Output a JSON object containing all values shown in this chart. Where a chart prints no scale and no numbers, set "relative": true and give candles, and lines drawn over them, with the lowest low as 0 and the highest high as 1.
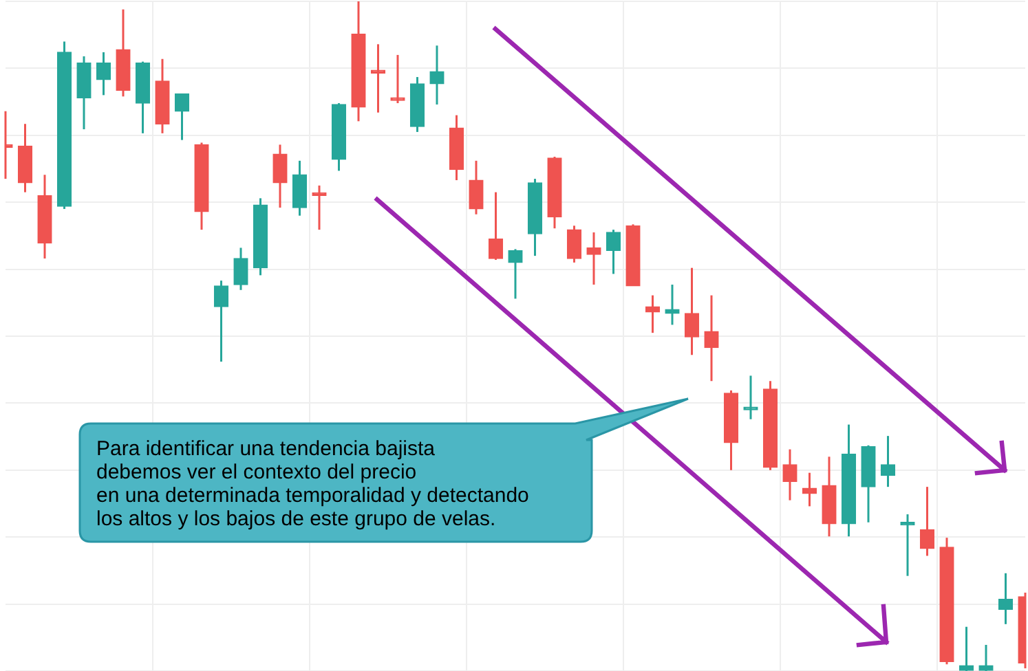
{
  "chart_data": {
    "type": "candlestick",
    "relative": true,
    "grid": true,
    "categories": [
      null,
      null,
      null,
      null,
      null,
      null,
      null,
      null,
      null,
      null,
      null,
      null,
      null,
      null,
      null,
      null,
      null,
      null,
      null,
      null,
      null,
      null,
      null,
      null,
      null,
      null,
      null,
      null,
      null,
      null,
      null,
      null,
      null,
      null,
      null,
      null,
      null,
      null,
      null,
      null,
      null,
      null,
      null,
      null,
      null,
      null,
      null,
      null,
      null,
      null,
      null,
      null,
      null
    ],
    "ohlc": [
      [
        0.786,
        0.836,
        0.735,
        0.782
      ],
      [
        0.784,
        0.817,
        0.715,
        0.729
      ],
      [
        0.71,
        0.741,
        0.616,
        0.639
      ],
      [
        0.694,
        0.94,
        0.69,
        0.924
      ],
      [
        0.856,
        0.918,
        0.809,
        0.908
      ],
      [
        0.883,
        0.924,
        0.86,
        0.908
      ],
      [
        0.928,
        0.988,
        0.858,
        0.867
      ],
      [
        0.848,
        0.91,
        0.803,
        0.908
      ],
      [
        0.881,
        0.914,
        0.803,
        0.817
      ],
      [
        0.836,
        0.862,
        0.793,
        0.862
      ],
      [
        0.786,
        0.789,
        0.659,
        0.686
      ],
      [
        0.544,
        0.583,
        0.462,
        0.575
      ],
      [
        0.577,
        0.632,
        0.569,
        0.616
      ],
      [
        0.602,
        0.706,
        0.591,
        0.696
      ],
      [
        0.772,
        0.786,
        0.692,
        0.729
      ],
      [
        0.692,
        0.762,
        0.68,
        0.741
      ],
      [
        0.71,
        0.725,
        0.659,
        0.71
      ],
      [
        0.764,
        0.848,
        0.747,
        0.846
      ],
      [
        0.951,
        1.0,
        0.821,
        0.842
      ],
      [
        0.897,
        0.936,
        0.834,
        0.893
      ],
      [
        0.852,
        0.92,
        0.848,
        0.852
      ],
      [
        0.813,
        0.887,
        0.805,
        0.877
      ],
      [
        0.877,
        0.934,
        0.846,
        0.895
      ],
      [
        0.811,
        0.83,
        0.733,
        0.749
      ],
      [
        0.733,
        0.762,
        0.682,
        0.69
      ],
      [
        0.645,
        0.715,
        0.614,
        0.616
      ],
      [
        0.61,
        0.63,
        0.556,
        0.628
      ],
      [
        0.653,
        0.735,
        0.62,
        0.729
      ],
      [
        0.766,
        0.768,
        0.661,
        0.678
      ],
      [
        0.659,
        0.665,
        0.61,
        0.616
      ],
      [
        0.632,
        0.655,
        0.577,
        0.622
      ],
      [
        0.628,
        0.659,
        0.593,
        0.655
      ],
      [
        0.665,
        0.667,
        0.575,
        0.575
      ],
      [
        0.544,
        0.561,
        0.505,
        0.536
      ],
      [
        0.534,
        0.577,
        0.517,
        0.54
      ],
      [
        0.534,
        0.602,
        0.472,
        0.499
      ],
      [
        0.507,
        0.561,
        0.433,
        0.483
      ],
      [
        0.415,
        0.419,
        0.3,
        0.341
      ],
      [
        0.39,
        0.441,
        0.376,
        0.39
      ],
      [
        0.421,
        0.433,
        0.3,
        0.304
      ],
      [
        0.308,
        0.331,
        0.255,
        0.283
      ],
      [
        0.273,
        0.296,
        0.246,
        0.265
      ],
      [
        0.277,
        0.32,
        0.201,
        0.22
      ],
      [
        0.22,
        0.368,
        0.201,
        0.324
      ],
      [
        0.275,
        0.337,
        0.222,
        0.335
      ],
      [
        0.292,
        0.351,
        0.275,
        0.308
      ],
      [
        0.218,
        0.234,
        0.142,
        0.218
      ],
      [
        0.211,
        0.275,
        0.172,
        0.183
      ],
      [
        0.185,
        0.199,
        0.01,
        0.014
      ],
      [
        0,
        0.066,
        0,
        0.008
      ],
      [
        0,
        0.039,
        0,
        0.008
      ],
      [
        0.092,
        0.146,
        0.07,
        0.107
      ],
      [
        0.111,
        0.117,
        0.004,
        0.012
      ]
    ],
    "colors": [
      "#ef5350",
      "#ef5350",
      "#ef5350",
      "#26a69a",
      "#26a69a",
      "#26a69a",
      "#ef5350",
      "#26a69a",
      "#ef5350",
      "#26a69a",
      "#ef5350",
      "#26a69a",
      "#26a69a",
      "#26a69a",
      "#ef5350",
      "#26a69a",
      "#ef5350",
      "#26a69a",
      "#ef5350",
      "#ef5350",
      "#ef5350",
      "#26a69a",
      "#26a69a",
      "#ef5350",
      "#ef5350",
      "#ef5350",
      "#26a69a",
      "#26a69a",
      "#ef5350",
      "#ef5350",
      "#ef5350",
      "#26a69a",
      "#ef5350",
      "#ef5350",
      "#26a69a",
      "#ef5350",
      "#ef5350",
      "#ef5350",
      "#26a69a",
      "#ef5350",
      "#ef5350",
      "#ef5350",
      "#ef5350",
      "#26a69a",
      "#26a69a",
      "#26a69a",
      "#26a69a",
      "#ef5350",
      "#ef5350",
      "#26a69a",
      "#26a69a",
      "#26a69a",
      "#ef5350"
    ],
    "annotations": [
      "Para identificar una tendencia bajista\ndebemos ver el contexto del precio\nen una determinada temporalidad y detectando\nlos altos y los bajos de este grupo de velas."
    ]
  }
}
